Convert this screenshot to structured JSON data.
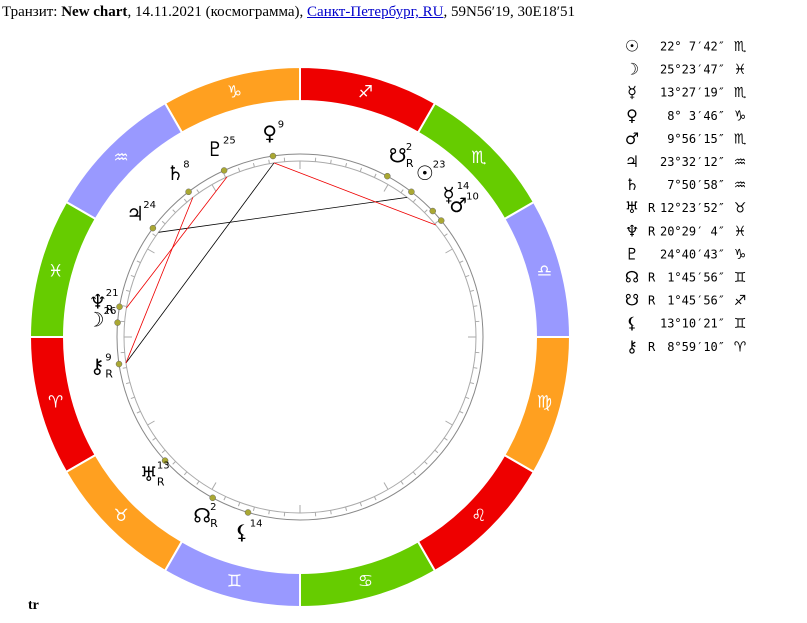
{
  "header": {
    "prefix": "Транзит:",
    "chart_name": "New chart",
    "details": ", 14.11.2021 (космограмма),",
    "location": "Санкт-Петербург, RU",
    "coords": ", 59N56′19, 30E18′51"
  },
  "zodiac": [
    "♈",
    "♉",
    "♊",
    "♋",
    "♌",
    "♍",
    "♎",
    "♏",
    "♐",
    "♑",
    "♒",
    "♓"
  ],
  "planets": [
    {
      "glyph": "☉",
      "position": "22° 7′42″",
      "sign": "♏",
      "wheel_degree": 23
    },
    {
      "glyph": "☽",
      "position": "25°23′47″",
      "sign": "♓",
      "wheel_degree": 26
    },
    {
      "glyph": "☿",
      "position": "13°27′19″",
      "sign": "♏",
      "wheel_degree": 14
    },
    {
      "glyph": "♀",
      "position": "8° 3′46″",
      "sign": "♑",
      "wheel_degree": 9
    },
    {
      "glyph": "♂",
      "position": "9°56′15″",
      "sign": "♏",
      "wheel_degree": 10
    },
    {
      "glyph": "♃",
      "position": "23°32′12″",
      "sign": "♒",
      "wheel_degree": 24
    },
    {
      "glyph": "♄",
      "position": "7°50′58″",
      "sign": "♒",
      "wheel_degree": 8
    },
    {
      "glyph": "♅",
      "retrograde": "R",
      "position": "12°23′52″",
      "sign": "♉",
      "wheel_degree": 13
    },
    {
      "glyph": "♆",
      "retrograde": "R",
      "position": "20°29′ 4″",
      "sign": "♓",
      "wheel_degree": 21
    },
    {
      "glyph": "♇",
      "position": "24°40′43″",
      "sign": "♑",
      "wheel_degree": 25
    },
    {
      "glyph": "☊",
      "retrograde": "R",
      "position": "1°45′56″",
      "sign": "♊",
      "wheel_degree": 2
    },
    {
      "glyph": "☋",
      "retrograde": "R",
      "position": "1°45′56″",
      "sign": "♐",
      "wheel_degree": 2
    },
    {
      "glyph": "⚸",
      "position": "13°10′21″",
      "sign": "♊",
      "wheel_degree": 14
    },
    {
      "glyph": "⚷",
      "retrograde": "R",
      "position": "8°59′10″",
      "sign": "♈",
      "wheel_degree": 9
    }
  ],
  "footer": "tr"
}
